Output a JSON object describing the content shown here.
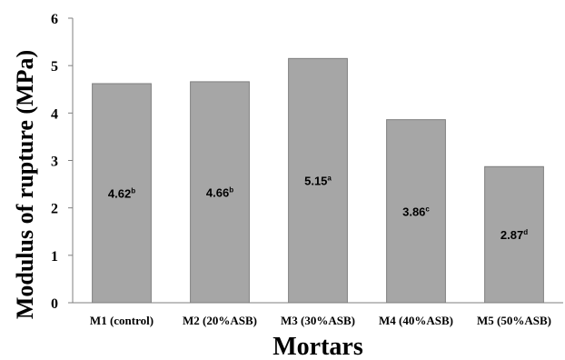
{
  "chart_data": {
    "type": "bar",
    "title": "",
    "xlabel": "Mortars",
    "ylabel": "Modulus of rupture (MPa)",
    "ylim": [
      0,
      6
    ],
    "yticks": [
      "0",
      "1",
      "2",
      "3",
      "4",
      "5",
      "6"
    ],
    "grid": false,
    "bar_color": "#a6a6a6",
    "bar_edge_color": "#7f7f7f",
    "categories": [
      "M1 (control)",
      "M2 (20%ASB)",
      "M3 (30%ASB)",
      "M4 (40%ASB)",
      "M5 (50%ASB)"
    ],
    "values": [
      4.62,
      4.66,
      5.15,
      3.86,
      2.87
    ],
    "value_labels": [
      "4.62",
      "4.66",
      "5.15",
      "3.86",
      "2.87"
    ],
    "label_superscripts": [
      "b",
      "b",
      "a",
      "c",
      "d"
    ]
  }
}
